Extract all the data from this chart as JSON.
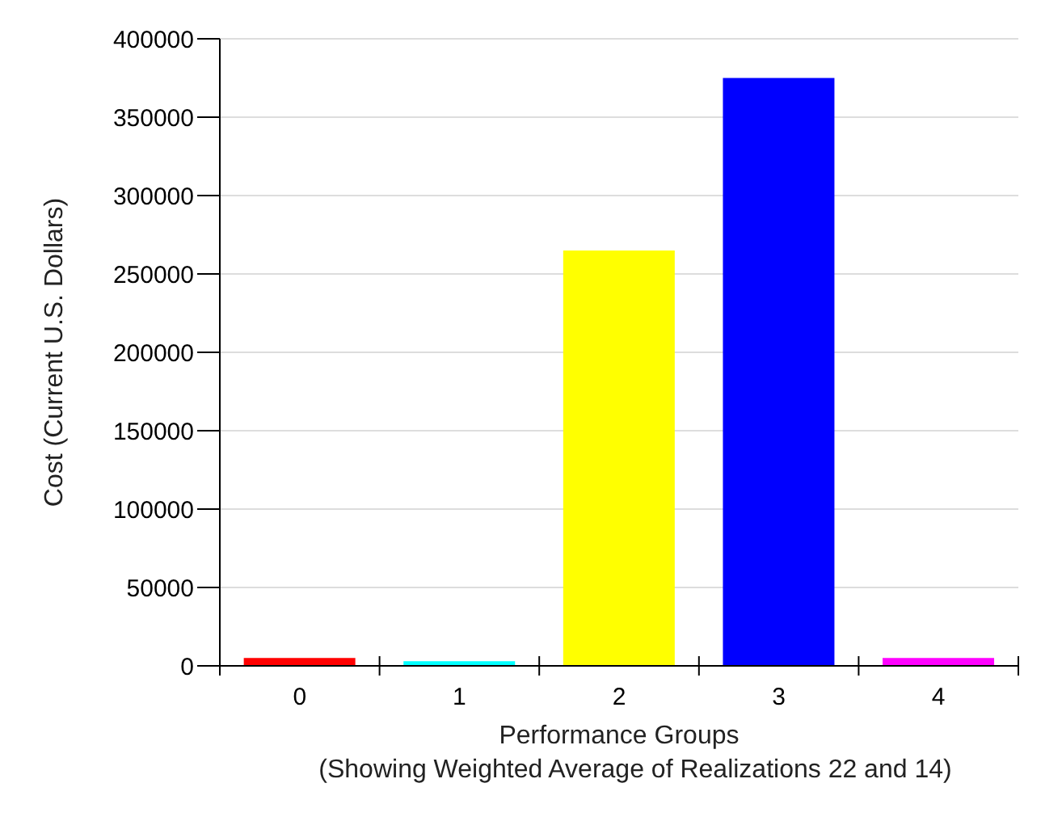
{
  "chart_data": {
    "type": "bar",
    "xlabel": "Performance Groups\n(Showing Weighted Average of Realizations 22 and 14)",
    "ylabel": "Cost (Current U.S. Dollars)",
    "categories": [
      "0",
      "1",
      "2",
      "3",
      "4"
    ],
    "values": [
      5000,
      3000,
      265000,
      375000,
      5000
    ],
    "colors": [
      "#ff0000",
      "#00ffff",
      "#ffff00",
      "#0000ff",
      "#ff00ff"
    ],
    "ylim": [
      0,
      400000
    ],
    "yticks": [
      0,
      50000,
      100000,
      150000,
      200000,
      250000,
      300000,
      350000,
      400000
    ],
    "grid": "y",
    "legend": false
  }
}
